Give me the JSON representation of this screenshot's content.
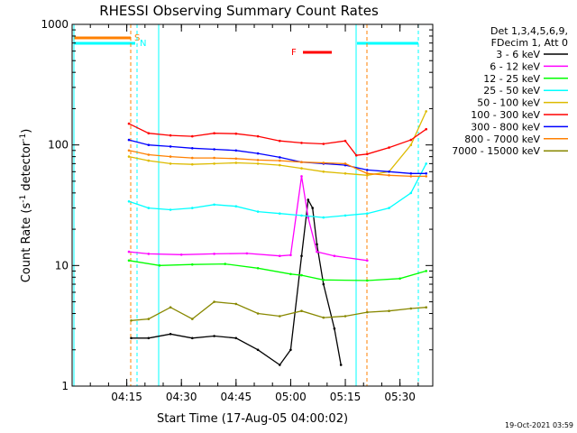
{
  "chart_data": {
    "type": "line",
    "title": "RHESSI Observing Summary Count Rates",
    "xlabel": "Start Time (17-Aug-05 04:00:02)",
    "ylabel_main": "Count Rate (s",
    "ylabel_sup1": "-1",
    "ylabel_mid": " detector",
    "ylabel_sup2": "-1",
    "ylabel_end": ")",
    "y_scale": "log",
    "ylim": [
      1,
      1000
    ],
    "xlim": [
      4.0,
      5.65
    ],
    "x_ticks": [
      {
        "value": 4.25,
        "label": "04:15"
      },
      {
        "value": 4.5,
        "label": "04:30"
      },
      {
        "value": 4.75,
        "label": "04:45"
      },
      {
        "value": 5.0,
        "label": "05:00"
      },
      {
        "value": 5.25,
        "label": "05:15"
      },
      {
        "value": 5.5,
        "label": "05:30"
      }
    ],
    "y_ticks": [
      {
        "value": 1,
        "label": "1"
      },
      {
        "value": 10,
        "label": "10"
      },
      {
        "value": 100,
        "label": "100"
      },
      {
        "value": 1000,
        "label": "1000"
      }
    ],
    "legend_header": [
      "Det 1,3,4,5,6,9,",
      "FDecim 1, Att 0"
    ],
    "legend_position": "right",
    "flag_labels": {
      "saa": "S",
      "night": "N",
      "flare": "F"
    },
    "timestamp": "19-Oct-2021 03:59",
    "series": [
      {
        "name": "3 - 6 keV",
        "color": "#000000",
        "x": [
          4.27,
          4.35,
          4.45,
          4.55,
          4.65,
          4.75,
          4.85,
          4.95,
          5.0,
          5.05,
          5.08,
          5.1,
          5.12,
          5.15,
          5.2,
          5.23
        ],
        "y": [
          2.5,
          2.5,
          2.7,
          2.5,
          2.6,
          2.5,
          2.0,
          1.5,
          2.0,
          12,
          35,
          30,
          15,
          7,
          3,
          1.5
        ]
      },
      {
        "name": "6 - 12 keV",
        "color": "#ff00ff",
        "x": [
          4.26,
          4.35,
          4.5,
          4.65,
          4.8,
          4.95,
          5.0,
          5.05,
          5.08,
          5.12,
          5.2,
          5.35
        ],
        "y": [
          13,
          12.5,
          12.3,
          12.5,
          12.6,
          12,
          12.2,
          55,
          25,
          13,
          12,
          11
        ]
      },
      {
        "name": "12 - 25 keV",
        "color": "#00ff00",
        "x": [
          4.26,
          4.4,
          4.55,
          4.7,
          4.85,
          5.0,
          5.05,
          5.15,
          5.35,
          5.5,
          5.62
        ],
        "y": [
          11,
          10,
          10.2,
          10.3,
          9.5,
          8.5,
          8.3,
          7.6,
          7.5,
          7.8,
          9
        ]
      },
      {
        "name": "25 - 50 keV",
        "color": "#00ffff",
        "x": [
          4.26,
          4.35,
          4.45,
          4.55,
          4.65,
          4.75,
          4.85,
          4.95,
          5.05,
          5.15,
          5.25,
          5.35,
          5.45,
          5.55,
          5.62
        ],
        "y": [
          34,
          30,
          29,
          30,
          32,
          31,
          28,
          27,
          26,
          25,
          26,
          27,
          30,
          40,
          70
        ]
      },
      {
        "name": "50 - 100 keV",
        "color": "#ddbb00",
        "x": [
          4.26,
          4.35,
          4.45,
          4.55,
          4.65,
          4.75,
          4.85,
          4.95,
          5.05,
          5.15,
          5.25,
          5.35,
          5.45,
          5.55,
          5.62
        ],
        "y": [
          80,
          74,
          70,
          69,
          70,
          71,
          70,
          68,
          64,
          60,
          58,
          56,
          60,
          100,
          190
        ]
      },
      {
        "name": "100 - 300 keV",
        "color": "#ff0000",
        "x": [
          4.26,
          4.35,
          4.45,
          4.55,
          4.65,
          4.75,
          4.85,
          4.95,
          5.05,
          5.15,
          5.25,
          5.3,
          5.35,
          5.45,
          5.55,
          5.62
        ],
        "y": [
          150,
          125,
          120,
          118,
          125,
          124,
          118,
          108,
          104,
          102,
          108,
          82,
          84,
          95,
          110,
          135
        ]
      },
      {
        "name": "300 - 800 keV",
        "color": "#0000ff",
        "x": [
          4.26,
          4.35,
          4.45,
          4.55,
          4.65,
          4.75,
          4.85,
          4.95,
          5.05,
          5.15,
          5.25,
          5.35,
          5.45,
          5.55,
          5.62
        ],
        "y": [
          110,
          100,
          97,
          94,
          92,
          90,
          85,
          79,
          72,
          70,
          68,
          62,
          60,
          58,
          58
        ]
      },
      {
        "name": "800 - 7000 keV",
        "color": "#ff8000",
        "x": [
          4.26,
          4.35,
          4.45,
          4.55,
          4.65,
          4.75,
          4.85,
          4.95,
          5.05,
          5.15,
          5.25,
          5.35,
          5.45,
          5.55,
          5.62
        ],
        "y": [
          90,
          83,
          80,
          78,
          78,
          77,
          75,
          74,
          72,
          71,
          70,
          58,
          56,
          55,
          55
        ]
      },
      {
        "name": "7000 - 15000 keV",
        "color": "#888800",
        "x": [
          4.27,
          4.35,
          4.45,
          4.55,
          4.65,
          4.75,
          4.85,
          4.95,
          5.05,
          5.15,
          5.25,
          5.35,
          5.45,
          5.55,
          5.62
        ],
        "y": [
          3.5,
          3.6,
          4.5,
          3.6,
          5.0,
          4.8,
          4.0,
          3.8,
          4.2,
          3.7,
          3.8,
          4.1,
          4.2,
          4.4,
          4.5
        ]
      }
    ]
  }
}
